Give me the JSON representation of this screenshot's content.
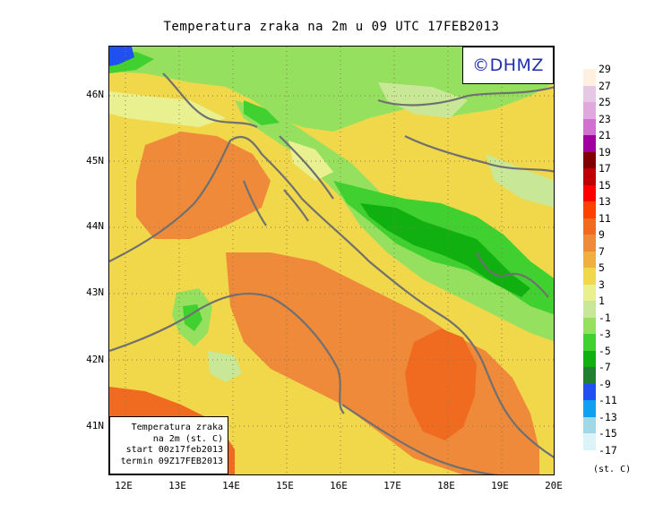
{
  "title": "Temperatura zraka na 2m u 09 UTC 17FEB2013",
  "logo": "©DHMZ",
  "latitude_labels": [
    "46N",
    "45N",
    "44N",
    "43N",
    "42N",
    "41N"
  ],
  "longitude_labels": [
    "12E",
    "13E",
    "14E",
    "15E",
    "16E",
    "17E",
    "18E",
    "19E",
    "20E"
  ],
  "info_box": {
    "line1": "Temperatura zraka",
    "line2": "na 2m (st. C)",
    "line3": "start 00z17feb2013",
    "line4": "termin 09Z17FEB2013"
  },
  "legend": {
    "labels": [
      "29",
      "27",
      "25",
      "23",
      "21",
      "19",
      "17",
      "15",
      "13",
      "11",
      "9",
      "7",
      "5",
      "3",
      "1",
      "-1",
      "-3",
      "-5",
      "-7",
      "-9",
      "-11",
      "-13",
      "-15",
      "-17"
    ],
    "colors": [
      "#fff0e0",
      "#e4c8e4",
      "#e0a8dc",
      "#d070d0",
      "#a000a0",
      "#800000",
      "#c00000",
      "#ff0000",
      "#ff4000",
      "#f06b20",
      "#ee8a3a",
      "#f0b040",
      "#f0d84a",
      "#e8f090",
      "#c8e898",
      "#96e060",
      "#40d030",
      "#10b010",
      "#208030",
      "#2050f0",
      "#10a0f0",
      "#a0d8e8",
      "#dcf4f8",
      "#ffffff"
    ],
    "units": "(st. C)"
  }
}
